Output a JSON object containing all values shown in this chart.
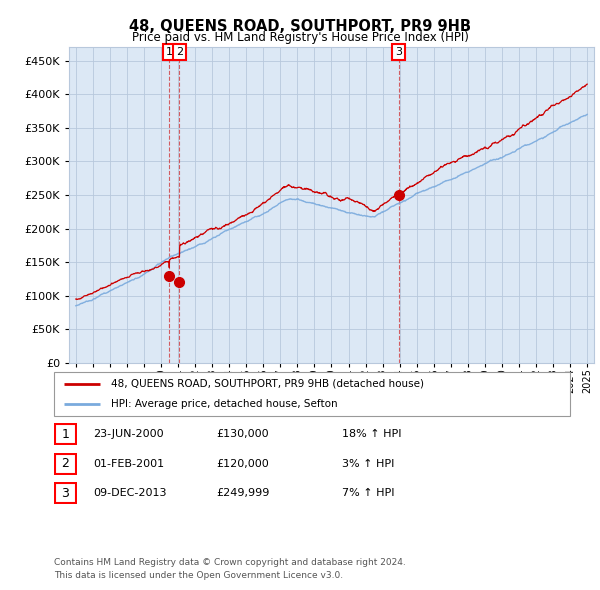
{
  "title": "48, QUEENS ROAD, SOUTHPORT, PR9 9HB",
  "subtitle": "Price paid vs. HM Land Registry's House Price Index (HPI)",
  "legend_red": "48, QUEENS ROAD, SOUTHPORT, PR9 9HB (detached house)",
  "legend_blue": "HPI: Average price, detached house, Sefton",
  "footer1": "Contains HM Land Registry data © Crown copyright and database right 2024.",
  "footer2": "This data is licensed under the Open Government Licence v3.0.",
  "transactions": [
    {
      "num": 1,
      "date": "23-JUN-2000",
      "price": "£130,000",
      "hpi": "18% ↑ HPI",
      "year": 2000.48
    },
    {
      "num": 2,
      "date": "01-FEB-2001",
      "price": "£120,000",
      "hpi": "3% ↑ HPI",
      "year": 2001.08
    },
    {
      "num": 3,
      "date": "09-DEC-2013",
      "price": "£249,999",
      "hpi": "7% ↑ HPI",
      "year": 2013.94
    }
  ],
  "transaction_prices": [
    130000,
    120000,
    249999
  ],
  "ylim": [
    0,
    470000
  ],
  "yticks": [
    0,
    50000,
    100000,
    150000,
    200000,
    250000,
    300000,
    350000,
    400000,
    450000
  ],
  "start_year": 1995,
  "end_year": 2025,
  "bg_color": "#dce8f5",
  "grid_color": "#b8c8dc",
  "red_line_color": "#cc0000",
  "blue_line_color": "#7aaadd",
  "blue_fill_color": "#ccdaee"
}
